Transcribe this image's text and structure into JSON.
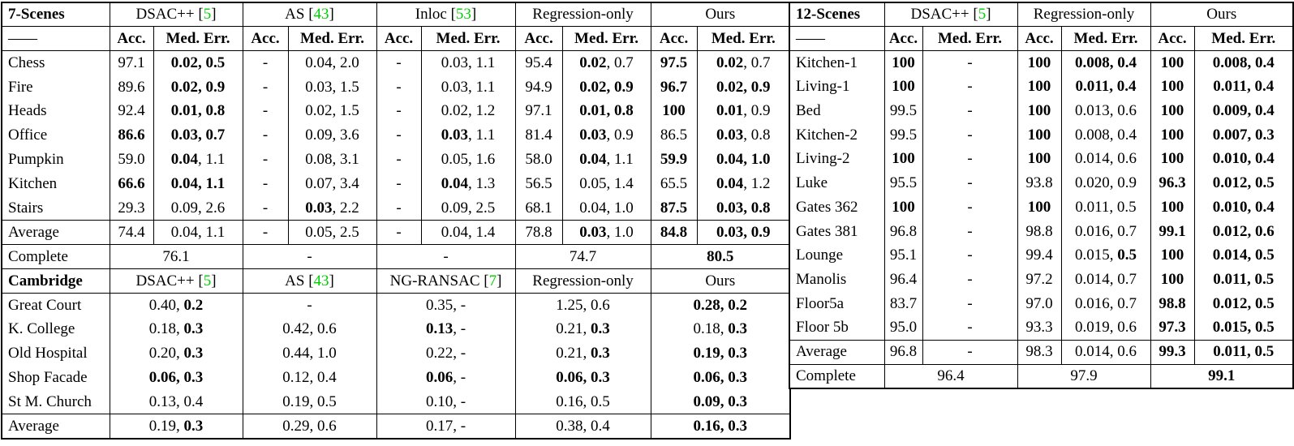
{
  "colors": {
    "citation": "#00CF00",
    "border": "#000000",
    "text": "#000000",
    "background": "#FFFFFF"
  },
  "left_table": {
    "seven": {
      "title": "7-Scenes",
      "dash": "——",
      "acc_label": "Acc.",
      "med_label": "Med. Err.",
      "groups": [
        {
          "pre": "DSAC++ [",
          "cite": "5",
          "post": "]"
        },
        {
          "pre": "AS [",
          "cite": "43",
          "post": "]"
        },
        {
          "pre": "Inloc [",
          "cite": "53",
          "post": "]"
        },
        {
          "pre": "Regression-only",
          "cite": "",
          "post": ""
        },
        {
          "pre": "Ours",
          "cite": "",
          "post": ""
        }
      ],
      "rows": [
        {
          "scene": "Chess",
          "cells": [
            "97.1",
            "**0.02, 0.5**",
            "-",
            "0.04, 2.0",
            "-",
            "0.03, 1.1",
            "95.4",
            "**0.02**, 0.7",
            "**97.5**",
            "**0.02**, 0.7"
          ]
        },
        {
          "scene": "Fire",
          "cells": [
            "89.6",
            "**0.02, 0.9**",
            "-",
            "0.03, 1.5",
            "-",
            "0.03, 1.1",
            "94.9",
            "**0.02, 0.9**",
            "**96.7**",
            "**0.02, 0.9**"
          ]
        },
        {
          "scene": "Heads",
          "cells": [
            "92.4",
            "**0.01, 0.8**",
            "-",
            "0.02, 1.5",
            "-",
            "0.02, 1.2",
            "97.1",
            "**0.01, 0.8**",
            "**100**",
            "**0.01**, 0.9"
          ]
        },
        {
          "scene": "Office",
          "cells": [
            "**86.6**",
            "**0.03, 0.7**",
            "-",
            "0.09, 3.6",
            "-",
            "**0.03**, 1.1",
            "81.4",
            "**0.03**, 0.9",
            "86.5",
            "**0.03**, 0.8"
          ]
        },
        {
          "scene": "Pumpkin",
          "cells": [
            "59.0",
            "**0.04**, 1.1",
            "-",
            "0.08, 3.1",
            "-",
            "0.05, 1.6",
            "58.0",
            "**0.04**, 1.1",
            "**59.9**",
            "**0.04, 1.0**"
          ]
        },
        {
          "scene": "Kitchen",
          "cells": [
            "**66.6**",
            "**0.04, 1.1**",
            "-",
            "0.07, 3.4",
            "-",
            "**0.04**, 1.3",
            "56.5",
            "0.05, 1.4",
            "65.5",
            "**0.04**, 1.2"
          ]
        },
        {
          "scene": "Stairs",
          "cells": [
            "29.3",
            "0.09, 2.6",
            "-",
            "**0.03**, 2.2",
            "-",
            "0.09, 2.5",
            "68.1",
            "0.04, 1.0",
            "**87.5**",
            "**0.03, 0.8**"
          ]
        },
        {
          "scene": "Average",
          "cells": [
            "74.4",
            "0.04, 1.1",
            "-",
            "0.05, 2.5",
            "-",
            "0.04, 1.4",
            "78.8",
            "**0.03**, 1.0",
            "**84.8**",
            "**0.03, 0.9**"
          ]
        }
      ],
      "complete": {
        "label": "Complete",
        "cells": [
          "76.1",
          "-",
          "-",
          "74.7",
          "**80.5**"
        ]
      }
    },
    "cambridge": {
      "title": "Cambridge",
      "groups": [
        {
          "pre": "DSAC++ [",
          "cite": "5",
          "post": "]"
        },
        {
          "pre": "AS [",
          "cite": "43",
          "post": "]"
        },
        {
          "pre": "NG-RANSAC [",
          "cite": "7",
          "post": "]"
        },
        {
          "pre": "Regression-only",
          "cite": "",
          "post": ""
        },
        {
          "pre": "Ours",
          "cite": "",
          "post": ""
        }
      ],
      "rows": [
        {
          "scene": "Great Court",
          "cells": [
            "0.40, **0.2**",
            "-",
            "0.35, -",
            "1.25, 0.6",
            "**0.28, 0.2**"
          ]
        },
        {
          "scene": "K. College",
          "cells": [
            "0.18, **0.3**",
            "0.42, 0.6",
            "**0.13**, -",
            "0.21, **0.3**",
            "0.18, **0.3**"
          ]
        },
        {
          "scene": "Old Hospital",
          "cells": [
            "0.20, **0.3**",
            "0.44, 1.0",
            "0.22, -",
            "0.21, **0.3**",
            "**0.19, 0.3**"
          ]
        },
        {
          "scene": "Shop Facade",
          "cells": [
            "**0.06, 0.3**",
            "0.12, 0.4",
            "**0.06**, -",
            "**0.06, 0.3**",
            "**0.06, 0.3**"
          ]
        },
        {
          "scene": "St M. Church",
          "cells": [
            "0.13, 0.4",
            "0.19, 0.5",
            "0.10, -",
            "0.16, 0.5",
            "**0.09, 0.3**"
          ]
        },
        {
          "scene": "Average",
          "cells": [
            "0.19, **0.3**",
            "0.29, 0.6",
            "0.17, -",
            "0.38, 0.4",
            "**0.16, 0.3**"
          ]
        }
      ]
    }
  },
  "right_table": {
    "title": "12-Scenes",
    "dash": "——",
    "acc_label": "Acc.",
    "med_label": "Med. Err.",
    "groups": [
      {
        "pre": "DSAC++ [",
        "cite": "5",
        "post": "]"
      },
      {
        "pre": "Regression-only",
        "cite": "",
        "post": ""
      },
      {
        "pre": "Ours",
        "cite": "",
        "post": ""
      }
    ],
    "rows": [
      {
        "scene": "Kitchen-1",
        "cells": [
          "**100**",
          "-",
          "**100**",
          "**0.008, 0.4**",
          "**100**",
          "**0.008, 0.4**"
        ]
      },
      {
        "scene": "Living-1",
        "cells": [
          "**100**",
          "-",
          "**100**",
          "**0.011, 0.4**",
          "**100**",
          "**0.011, 0.4**"
        ]
      },
      {
        "scene": "Bed",
        "cells": [
          "99.5",
          "-",
          "**100**",
          "0.013, 0.6",
          "**100**",
          "**0.009, 0.4**"
        ]
      },
      {
        "scene": "Kitchen-2",
        "cells": [
          "99.5",
          "-",
          "**100**",
          "0.008, 0.4",
          "**100**",
          "**0.007, 0.3**"
        ]
      },
      {
        "scene": "Living-2",
        "cells": [
          "**100**",
          "-",
          "**100**",
          "0.014, 0.6",
          "**100**",
          "**0.010, 0.4**"
        ]
      },
      {
        "scene": "Luke",
        "cells": [
          "95.5",
          "-",
          "93.8",
          "0.020, 0.9",
          "**96.3**",
          "**0.012, 0.5**"
        ]
      },
      {
        "scene": "Gates 362",
        "cells": [
          "**100**",
          "-",
          "**100**",
          "0.011, 0.5",
          "**100**",
          "**0.010, 0.4**"
        ]
      },
      {
        "scene": "Gates 381",
        "cells": [
          "96.8",
          "-",
          "98.8",
          "0.016, 0.7",
          "**99.1**",
          "**0.012, 0.6**"
        ]
      },
      {
        "scene": "Lounge",
        "cells": [
          "95.1",
          "-",
          "99.4",
          "0.015, **0.5**",
          "**100**",
          "**0.014, 0.5**"
        ]
      },
      {
        "scene": "Manolis",
        "cells": [
          "96.4",
          "-",
          "97.2",
          "0.014, 0.7",
          "**100**",
          "**0.011, 0.5**"
        ]
      },
      {
        "scene": "Floor5a",
        "cells": [
          "83.7",
          "-",
          "97.0",
          "0.016, 0.7",
          "**98.8**",
          "**0.012, 0.5**"
        ]
      },
      {
        "scene": "Floor 5b",
        "cells": [
          "95.0",
          "-",
          "93.3",
          "0.019, 0.6",
          "**97.3**",
          "**0.015, 0.5**"
        ]
      },
      {
        "scene": "Average",
        "cells": [
          "96.8",
          "-",
          "98.3",
          "0.014, 0.6",
          "**99.3**",
          "**0.011, 0.5**"
        ]
      }
    ],
    "complete": {
      "label": "Complete",
      "cells": [
        "96.4",
        "97.9",
        "**99.1**"
      ]
    }
  }
}
